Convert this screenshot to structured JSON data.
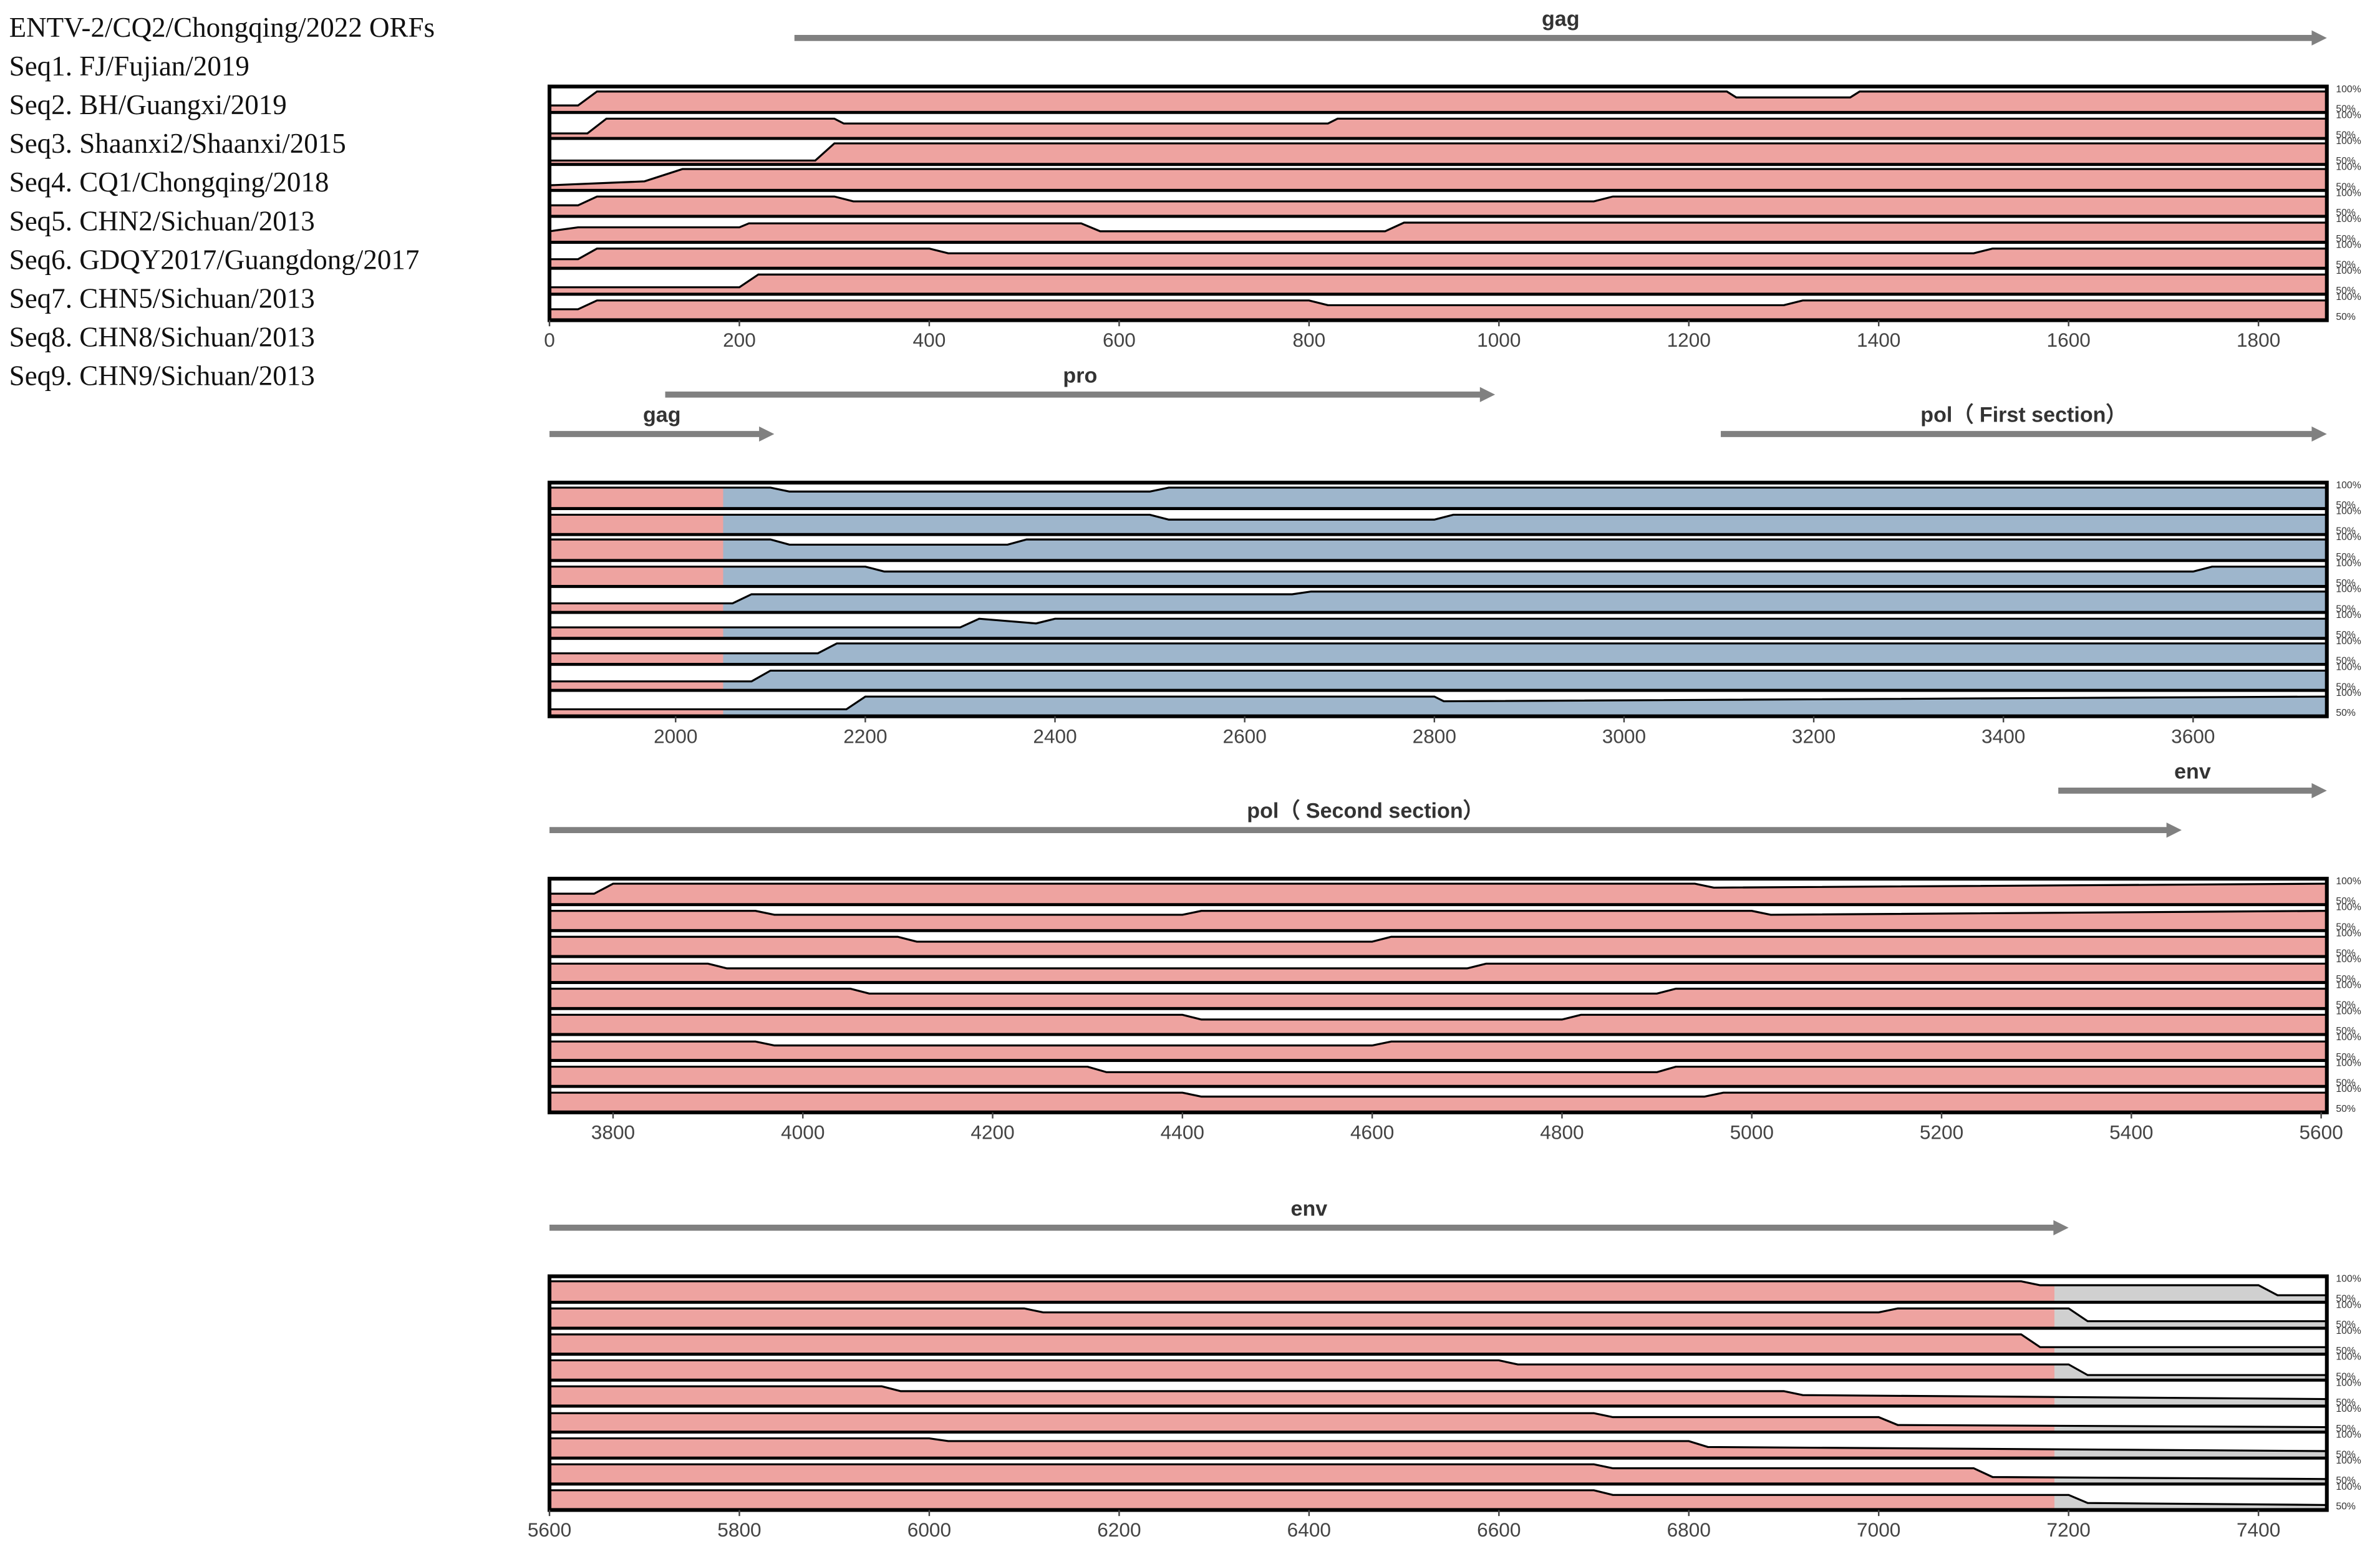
{
  "legend": [
    "ENTV-2/CQ2/Chongqing/2022 ORFs",
    "Seq1. FJ/Fujian/2019",
    "Seq2. BH/Guangxi/2019",
    "Seq3. Shaanxi2/Shaanxi/2015",
    "Seq4. CQ1/Chongqing/2018",
    "Seq5. CHN2/Sichuan/2013",
    "Seq6. GDQY2017/Guangdong/2017",
    "Seq7. CHN5/Sichuan/2013",
    "Seq8. CHN8/Sichuan/2013",
    "Seq9. CHN9/Sichuan/2013"
  ],
  "chart_data": [
    {
      "type": "area",
      "xlim": [
        0,
        1872
      ],
      "xticks": [
        0,
        200,
        400,
        600,
        800,
        1000,
        1200,
        1400,
        1600,
        1800
      ],
      "ylim": [
        50,
        100
      ],
      "yticks": [
        {
          "value": 50,
          "label": "50%"
        },
        {
          "value": 100,
          "label": "100%"
        }
      ],
      "regions": [
        {
          "start": 0,
          "end": 1872,
          "color": "#eea3a0"
        }
      ],
      "annotations": [
        {
          "label": "gag",
          "start": 258,
          "end": 1872
        }
      ],
      "series": [
        {
          "x": [
            0,
            30,
            50,
            1240,
            1250,
            1370,
            1380,
            1872
          ],
          "values": [
            60,
            60,
            95,
            95,
            80,
            80,
            95,
            95
          ]
        },
        {
          "x": [
            0,
            40,
            60,
            300,
            310,
            820,
            830,
            1872
          ],
          "values": [
            55,
            55,
            92,
            92,
            80,
            80,
            92,
            92
          ]
        },
        {
          "x": [
            0,
            280,
            300,
            1872
          ],
          "values": [
            52,
            52,
            95,
            95
          ]
        },
        {
          "x": [
            0,
            100,
            140,
            1872
          ],
          "values": [
            55,
            65,
            96,
            96
          ]
        },
        {
          "x": [
            0,
            30,
            50,
            300,
            320,
            1100,
            1120,
            1872
          ],
          "values": [
            70,
            70,
            92,
            92,
            80,
            80,
            92,
            92
          ]
        },
        {
          "x": [
            0,
            30,
            200,
            210,
            560,
            580,
            880,
            900,
            1872
          ],
          "values": [
            70,
            80,
            80,
            90,
            90,
            70,
            70,
            92,
            92
          ]
        },
        {
          "x": [
            0,
            30,
            50,
            400,
            420,
            1500,
            1520,
            1872
          ],
          "values": [
            65,
            65,
            92,
            92,
            80,
            80,
            92,
            92
          ]
        },
        {
          "x": [
            0,
            200,
            220,
            1872
          ],
          "values": [
            60,
            60,
            92,
            92
          ]
        },
        {
          "x": [
            0,
            30,
            50,
            800,
            820,
            1300,
            1320,
            1872
          ],
          "values": [
            70,
            70,
            92,
            92,
            80,
            80,
            92,
            92
          ]
        }
      ]
    },
    {
      "type": "area",
      "xlim": [
        1867,
        3741
      ],
      "xticks": [
        2000,
        2200,
        2400,
        2600,
        2800,
        3000,
        3200,
        3400,
        3600
      ],
      "ylim": [
        50,
        100
      ],
      "yticks": [
        {
          "value": 50,
          "label": "50%"
        },
        {
          "value": 100,
          "label": "100%"
        }
      ],
      "regions": [
        {
          "start": 1867,
          "end": 2050,
          "color": "#eea3a0"
        },
        {
          "start": 2050,
          "end": 3741,
          "color": "#9eb6cc"
        }
      ],
      "annotations": [
        {
          "label": "pro",
          "start": 1989,
          "end": 2864
        },
        {
          "label": "gag",
          "start": 1867,
          "end": 2104
        },
        {
          "label": "pol（ First section）",
          "start": 3102,
          "end": 3741
        }
      ],
      "series": [
        {
          "x": [
            1867,
            2100,
            2120,
            2500,
            2520,
            3741
          ],
          "values": [
            95,
            95,
            85,
            85,
            95,
            95
          ]
        },
        {
          "x": [
            1867,
            2500,
            2520,
            2800,
            2820,
            3741
          ],
          "values": [
            92,
            92,
            80,
            80,
            92,
            92
          ]
        },
        {
          "x": [
            1867,
            2100,
            2120,
            2350,
            2370,
            3741
          ],
          "values": [
            95,
            95,
            82,
            82,
            95,
            95
          ]
        },
        {
          "x": [
            1867,
            2200,
            2220,
            3600,
            3620,
            3741
          ],
          "values": [
            92,
            92,
            80,
            80,
            92,
            92
          ]
        },
        {
          "x": [
            1867,
            2060,
            2080,
            2650,
            2670,
            3741
          ],
          "values": [
            65,
            65,
            88,
            88,
            95,
            95
          ]
        },
        {
          "x": [
            1867,
            2300,
            2320,
            2380,
            2400,
            3741
          ],
          "values": [
            70,
            70,
            92,
            80,
            92,
            92
          ]
        },
        {
          "x": [
            1867,
            2150,
            2170,
            3741
          ],
          "values": [
            70,
            70,
            95,
            95
          ]
        },
        {
          "x": [
            1867,
            2080,
            2100,
            3741
          ],
          "values": [
            65,
            65,
            92,
            92
          ]
        },
        {
          "x": [
            1867,
            2180,
            2200,
            2800,
            2810,
            3741
          ],
          "values": [
            60,
            60,
            92,
            92,
            80,
            92
          ]
        }
      ]
    },
    {
      "type": "area",
      "xlim": [
        3733,
        5606
      ],
      "xticks": [
        3800,
        4000,
        4200,
        4400,
        4600,
        4800,
        5000,
        5200,
        5400,
        5600
      ],
      "ylim": [
        50,
        100
      ],
      "yticks": [
        {
          "value": 50,
          "label": "50%"
        },
        {
          "value": 100,
          "label": "100%"
        }
      ],
      "regions": [
        {
          "start": 3733,
          "end": 5606,
          "color": "#eea3a0"
        }
      ],
      "annotations": [
        {
          "label": "env",
          "start": 5323,
          "end": 5606
        },
        {
          "label": "pol（ Second section）",
          "start": 3733,
          "end": 5453
        }
      ],
      "series": [
        {
          "x": [
            3733,
            3780,
            3800,
            4940,
            4960,
            5606
          ],
          "values": [
            70,
            70,
            95,
            95,
            85,
            95
          ]
        },
        {
          "x": [
            3733,
            3950,
            3970,
            4400,
            4420,
            5000,
            5020,
            5606
          ],
          "values": [
            92,
            92,
            82,
            82,
            92,
            92,
            82,
            92
          ]
        },
        {
          "x": [
            3733,
            4100,
            4120,
            4600,
            4620,
            5606
          ],
          "values": [
            92,
            92,
            80,
            80,
            92,
            92
          ]
        },
        {
          "x": [
            3733,
            3900,
            3920,
            4700,
            4720,
            5606
          ],
          "values": [
            90,
            90,
            78,
            78,
            90,
            90
          ]
        },
        {
          "x": [
            3733,
            4050,
            4070,
            4900,
            4920,
            5606
          ],
          "values": [
            92,
            92,
            80,
            80,
            92,
            92
          ]
        },
        {
          "x": [
            3733,
            4400,
            4420,
            4800,
            4820,
            5606
          ],
          "values": [
            92,
            92,
            80,
            80,
            92,
            92
          ]
        },
        {
          "x": [
            3733,
            3950,
            3970,
            4600,
            4620,
            5606
          ],
          "values": [
            90,
            90,
            80,
            80,
            90,
            90
          ]
        },
        {
          "x": [
            3733,
            4300,
            4320,
            4900,
            4920,
            5606
          ],
          "values": [
            92,
            92,
            78,
            78,
            92,
            92
          ]
        },
        {
          "x": [
            3733,
            4400,
            4420,
            4950,
            4970,
            5606
          ],
          "values": [
            92,
            92,
            82,
            82,
            92,
            92
          ]
        }
      ]
    },
    {
      "type": "area",
      "xlim": [
        5600,
        7472
      ],
      "xticks": [
        5600,
        5800,
        6000,
        6200,
        6400,
        6600,
        6800,
        7000,
        7200,
        7400
      ],
      "ylim": [
        50,
        100
      ],
      "yticks": [
        {
          "value": 50,
          "label": "50%"
        },
        {
          "value": 100,
          "label": "100%"
        }
      ],
      "regions": [
        {
          "start": 5600,
          "end": 7185,
          "color": "#eea3a0"
        },
        {
          "start": 7185,
          "end": 7472,
          "color": "#d0d0d0"
        }
      ],
      "annotations": [
        {
          "label": "env",
          "start": 5600,
          "end": 7200
        }
      ],
      "series": [
        {
          "x": [
            5600,
            7150,
            7170,
            7400,
            7420,
            7472
          ],
          "values": [
            95,
            95,
            85,
            85,
            60,
            60
          ]
        },
        {
          "x": [
            5600,
            6100,
            6120,
            7000,
            7020,
            7200,
            7220,
            7472
          ],
          "values": [
            92,
            92,
            82,
            82,
            92,
            92,
            60,
            60
          ]
        },
        {
          "x": [
            5600,
            7150,
            7170,
            7472
          ],
          "values": [
            92,
            92,
            60,
            60
          ]
        },
        {
          "x": [
            5600,
            6600,
            6620,
            7200,
            7220,
            7472
          ],
          "values": [
            92,
            92,
            82,
            82,
            55,
            55
          ]
        },
        {
          "x": [
            5600,
            5950,
            5970,
            6900,
            6920,
            7472
          ],
          "values": [
            92,
            92,
            80,
            80,
            70,
            60
          ]
        },
        {
          "x": [
            5600,
            6700,
            6720,
            7000,
            7020,
            7472
          ],
          "values": [
            90,
            90,
            80,
            80,
            60,
            55
          ]
        },
        {
          "x": [
            5600,
            6000,
            6020,
            6800,
            6820,
            7472
          ],
          "values": [
            92,
            92,
            85,
            85,
            70,
            60
          ]
        },
        {
          "x": [
            5600,
            6700,
            6720,
            7100,
            7120,
            7472
          ],
          "values": [
            92,
            92,
            82,
            82,
            60,
            55
          ]
        },
        {
          "x": [
            5600,
            6700,
            6720,
            7200,
            7220,
            7472
          ],
          "values": [
            92,
            92,
            80,
            80,
            60,
            55
          ]
        }
      ]
    }
  ]
}
